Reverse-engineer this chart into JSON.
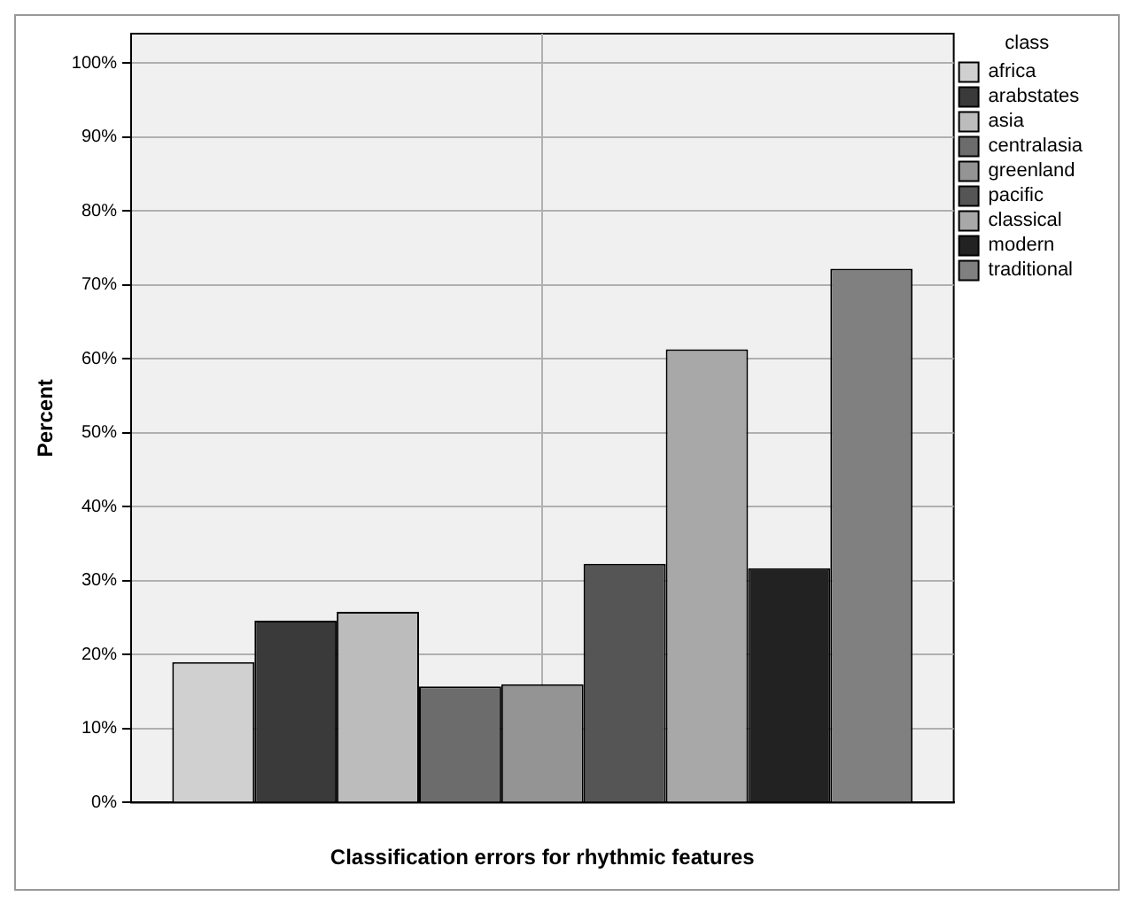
{
  "chart_data": {
    "type": "bar",
    "xlabel": "Classification errors for rhythmic features",
    "ylabel": "Percent",
    "legend_title": "class",
    "categories": [
      null
    ],
    "series": [
      {
        "name": "africa",
        "color": "#d0d0d0",
        "values": [
          19.0
        ]
      },
      {
        "name": "arabstates",
        "color": "#3a3a3a",
        "values": [
          24.6
        ]
      },
      {
        "name": "asia",
        "color": "#bcbcbc",
        "values": [
          25.8
        ]
      },
      {
        "name": "centralasia",
        "color": "#6c6c6c",
        "values": [
          15.7
        ]
      },
      {
        "name": "greenland",
        "color": "#949494",
        "values": [
          16.0
        ]
      },
      {
        "name": "pacific",
        "color": "#555555",
        "values": [
          32.3
        ]
      },
      {
        "name": "classical",
        "color": "#a8a8a8",
        "values": [
          61.3
        ]
      },
      {
        "name": "modern",
        "color": "#222222",
        "values": [
          31.7
        ]
      },
      {
        "name": "traditional",
        "color": "#808080",
        "values": [
          72.2
        ]
      }
    ],
    "ylim": [
      0,
      104
    ],
    "yticks": [
      {
        "value": 0,
        "label": "0%"
      },
      {
        "value": 10,
        "label": "10%"
      },
      {
        "value": 20,
        "label": "20%"
      },
      {
        "value": 30,
        "label": "30%"
      },
      {
        "value": 40,
        "label": "40%"
      },
      {
        "value": 50,
        "label": "50%"
      },
      {
        "value": 60,
        "label": "60%"
      },
      {
        "value": 70,
        "label": "70%"
      },
      {
        "value": 80,
        "label": "80%"
      },
      {
        "value": 90,
        "label": "90%"
      },
      {
        "value": 100,
        "label": "100%"
      }
    ],
    "grid": true,
    "legend": "top right"
  }
}
